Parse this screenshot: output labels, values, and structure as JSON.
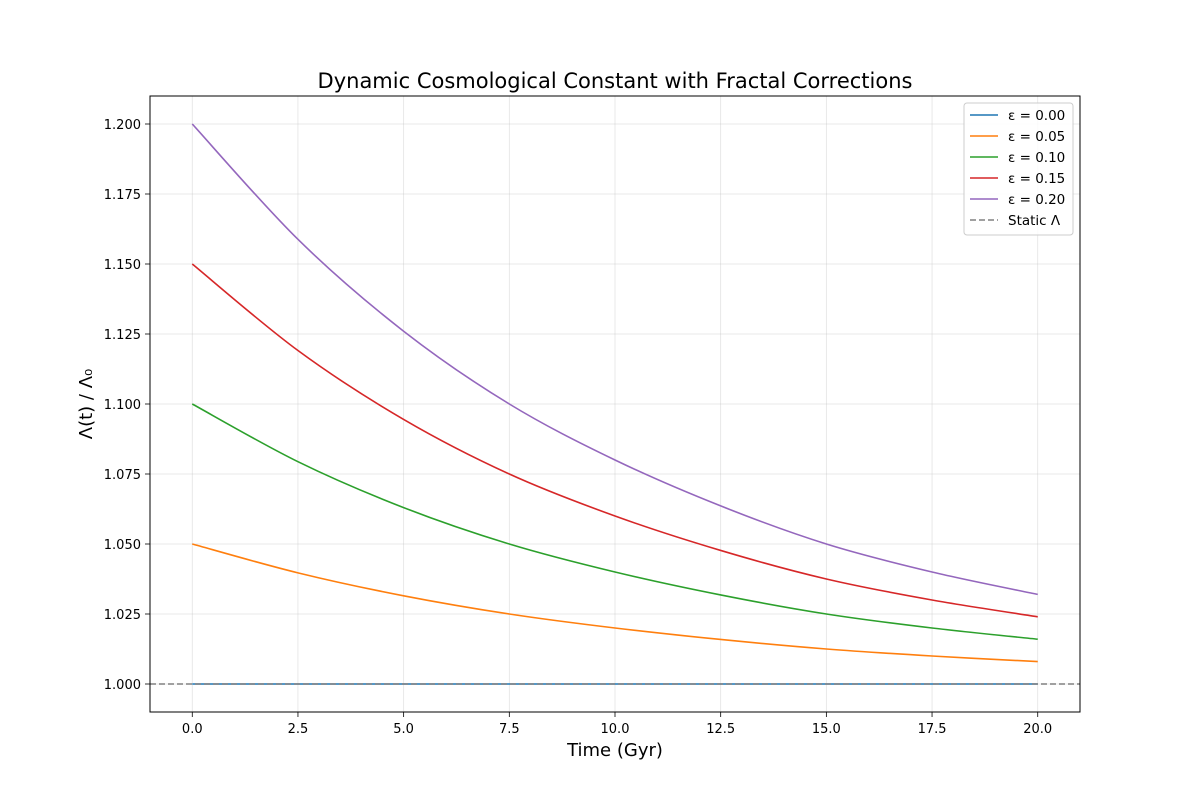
{
  "chart_data": {
    "type": "line",
    "title": "Dynamic Cosmological Constant with Fractal Corrections",
    "xlabel": "Time (Gyr)",
    "ylabel": "Λ(t) / Λ₀",
    "xlim": [
      -1.0,
      21.0
    ],
    "ylim": [
      0.99,
      1.21
    ],
    "xticks": [
      0.0,
      2.5,
      5.0,
      7.5,
      10.0,
      12.5,
      15.0,
      17.5,
      20.0
    ],
    "xtick_labels": [
      "0.0",
      "2.5",
      "5.0",
      "7.5",
      "10.0",
      "12.5",
      "15.0",
      "17.5",
      "20.0"
    ],
    "yticks": [
      1.0,
      1.025,
      1.05,
      1.075,
      1.1,
      1.125,
      1.15,
      1.175,
      1.2
    ],
    "ytick_labels": [
      "1.000",
      "1.025",
      "1.050",
      "1.075",
      "1.100",
      "1.125",
      "1.150",
      "1.175",
      "1.200"
    ],
    "grid": true,
    "legend_position": "top-right",
    "x": [
      0,
      2.5,
      5,
      7.5,
      10,
      12.5,
      15,
      17.5,
      20
    ],
    "series": [
      {
        "name": "ε = 0.00",
        "color": "#1f77b4",
        "values": [
          1.0,
          1.0,
          1.0,
          1.0,
          1.0,
          1.0,
          1.0,
          1.0,
          1.0
        ]
      },
      {
        "name": "ε = 0.05",
        "color": "#ff7f0e",
        "values": [
          1.05,
          1.0397,
          1.0315,
          1.025,
          1.02,
          1.0159,
          1.0125,
          1.01,
          1.008
        ]
      },
      {
        "name": "ε = 0.10",
        "color": "#2ca02c",
        "values": [
          1.1,
          1.0794,
          1.063,
          1.05,
          1.04,
          1.0318,
          1.025,
          1.02,
          1.016
        ]
      },
      {
        "name": "ε = 0.15",
        "color": "#d62728",
        "values": [
          1.15,
          1.1191,
          1.0945,
          1.075,
          1.06,
          1.0477,
          1.0375,
          1.03,
          1.024
        ]
      },
      {
        "name": "ε = 0.20",
        "color": "#9467bd",
        "values": [
          1.2,
          1.1588,
          1.126,
          1.1,
          1.08,
          1.0636,
          1.05,
          1.04,
          1.032
        ]
      }
    ],
    "reference_line": {
      "name": "Static Λ",
      "y": 1.0,
      "color": "#808080",
      "style": "dashed"
    }
  }
}
